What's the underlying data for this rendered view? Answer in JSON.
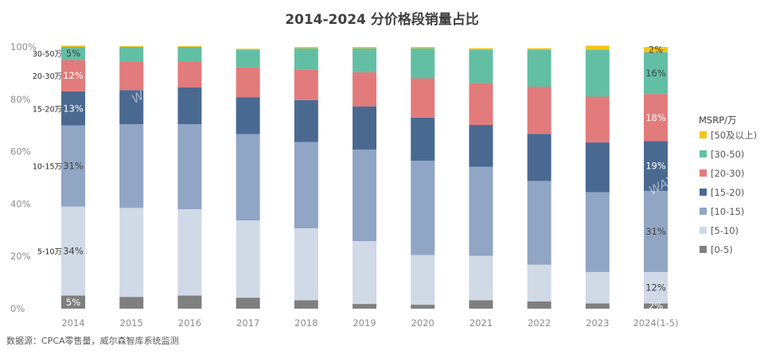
{
  "chart_data": {
    "type": "bar",
    "stacked": true,
    "title": "2014-2024 分价格段销量占比",
    "categories": [
      "2014",
      "2015",
      "2016",
      "2017",
      "2018",
      "2019",
      "2020",
      "2021",
      "2022",
      "2023",
      "2024(1-5)"
    ],
    "y_ticks": [
      "0%",
      "20%",
      "40%",
      "60%",
      "80%",
      "100%"
    ],
    "ylim": [
      0,
      100
    ],
    "grid": false,
    "legend_title": "MSRP/万",
    "legend_position": "right",
    "series": [
      {
        "name": "[0-5)",
        "color": "#7f7f7f",
        "values": [
          5,
          4.5,
          5,
          4.2,
          3.2,
          1.8,
          1.5,
          3.2,
          2.8,
          2,
          2
        ]
      },
      {
        "name": "[5-10)",
        "color": "#d0d9e6",
        "values": [
          34,
          34,
          33,
          29.5,
          27.5,
          24,
          19,
          17,
          14,
          12,
          12
        ]
      },
      {
        "name": "[10-15)",
        "color": "#91a5c4",
        "values": [
          31,
          32,
          32.5,
          33,
          33,
          35,
          36,
          34,
          32,
          30.5,
          31
        ]
      },
      {
        "name": "[15-20)",
        "color": "#4a6991",
        "values": [
          13,
          13,
          14,
          14,
          16,
          16.5,
          16.5,
          16,
          18,
          19,
          19
        ]
      },
      {
        "name": "[20-30)",
        "color": "#e27b7b",
        "values": [
          12,
          11,
          10,
          11.5,
          11.5,
          13,
          15,
          16,
          18,
          17.5,
          18
        ]
      },
      {
        "name": "[30-50)",
        "color": "#62bfa4",
        "values": [
          5,
          5.5,
          5.5,
          6.8,
          8.3,
          9.2,
          11.5,
          12.8,
          14.2,
          18,
          16
        ]
      },
      {
        "name": "[50及以上)",
        "color": "#f5c518",
        "values": [
          0.5,
          0.3,
          0.3,
          0.3,
          0.5,
          0.5,
          0.5,
          0.5,
          0.5,
          1.5,
          2
        ]
      }
    ],
    "data_labels": [
      {
        "category": "2014",
        "series": "[0-5)",
        "text": "5%"
      },
      {
        "category": "2014",
        "series": "[5-10)",
        "text": "34%"
      },
      {
        "category": "2014",
        "series": "[10-15)",
        "text": "31%"
      },
      {
        "category": "2014",
        "series": "[15-20)",
        "text": "13%"
      },
      {
        "category": "2014",
        "series": "[20-30)",
        "text": "12%"
      },
      {
        "category": "2014",
        "series": "[30-50)",
        "text": "5%"
      },
      {
        "category": "2024(1-5)",
        "series": "[0-5)",
        "text": "2%"
      },
      {
        "category": "2024(1-5)",
        "series": "[5-10)",
        "text": "12%"
      },
      {
        "category": "2024(1-5)",
        "series": "[10-15)",
        "text": "31%"
      },
      {
        "category": "2024(1-5)",
        "series": "[15-20)",
        "text": "19%"
      },
      {
        "category": "2024(1-5)",
        "series": "[20-30)",
        "text": "18%"
      },
      {
        "category": "2024(1-5)",
        "series": "[30-50)",
        "text": "16%"
      },
      {
        "category": "2024(1-5)",
        "series": "[50及以上)",
        "text": "2%"
      }
    ],
    "annotations": [
      {
        "series": "[30-50)",
        "text": "30-50万"
      },
      {
        "series": "[20-30)",
        "text": "20-30万"
      },
      {
        "series": "[15-20)",
        "text": "15-20万"
      },
      {
        "series": "[10-15)",
        "text": "10-15万"
      },
      {
        "series": "[5-10)",
        "text": "5-10万"
      }
    ],
    "watermark": "WAYS",
    "source": "数据源：CPCA零售量，威尔森智库系统监测"
  }
}
